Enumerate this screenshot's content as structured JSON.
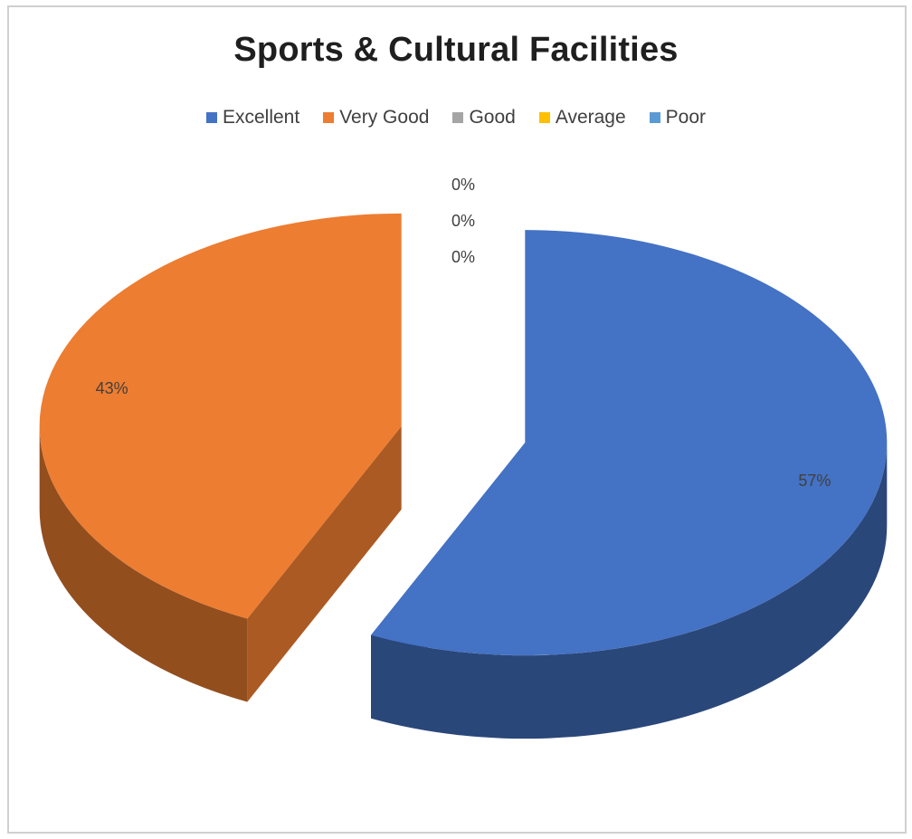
{
  "chart_data": {
    "type": "pie",
    "title": "Sports & Cultural Facilities",
    "categories": [
      "Excellent",
      "Very Good",
      "Good",
      "Average",
      "Poor"
    ],
    "values": [
      57,
      43,
      0,
      0,
      0
    ],
    "data_labels": [
      "57%",
      "43%",
      "0%",
      "0%",
      "0%"
    ],
    "colors": [
      "#4472c4",
      "#ed7d31",
      "#a5a5a5",
      "#ffc000",
      "#5b9bd5"
    ],
    "legend": "top",
    "style": "3d-exploded"
  }
}
